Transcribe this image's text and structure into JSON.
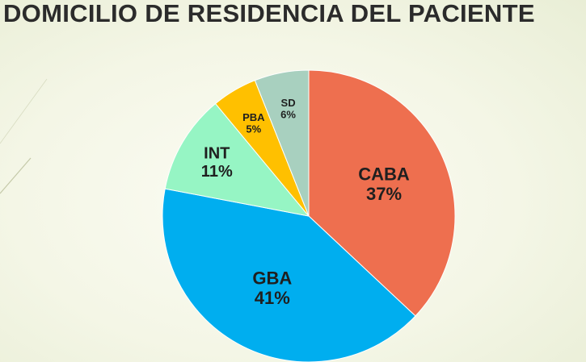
{
  "slide": {
    "title": "DOMICILIO DE RESIDENCIA DEL PACIENTE"
  },
  "chart_data": {
    "type": "pie",
    "title": "DOMICILIO DE RESIDENCIA DEL PACIENTE",
    "start_angle_deg": 0,
    "direction": "clockwise",
    "legend": "none",
    "slices": [
      {
        "label": "CABA",
        "value": 37,
        "value_label": "37%",
        "color": "#ee6f4f"
      },
      {
        "label": "GBA",
        "value": 41,
        "value_label": "41%",
        "color": "#00aeef"
      },
      {
        "label": "INT",
        "value": 11,
        "value_label": "11%",
        "color": "#96f5c4"
      },
      {
        "label": "PBA",
        "value": 5,
        "value_label": "5%",
        "color": "#ffc000"
      },
      {
        "label": "SD",
        "value": 6,
        "value_label": "6%",
        "color": "#a8d0bf"
      }
    ]
  }
}
